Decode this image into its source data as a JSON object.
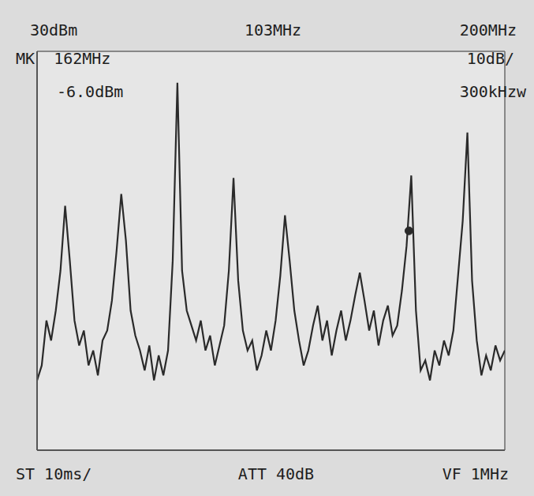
{
  "chart_data": {
    "type": "line",
    "annotations": [
      "30dBm",
      "103MHz",
      "200MHz",
      "MK  162MHz",
      "-6.0dBm",
      "10dB/",
      "300kHzw",
      "ST 10ms/",
      "ATT 40dB",
      "VF 1MHz"
    ],
    "x": [
      3,
      5,
      7,
      9,
      11,
      13,
      15,
      17,
      19,
      21,
      23,
      25,
      27,
      29,
      31,
      33,
      35,
      37,
      39,
      41,
      43,
      45,
      47,
      49,
      51,
      53,
      55,
      57,
      59,
      61,
      63,
      65,
      67,
      69,
      71,
      73,
      75,
      77,
      79,
      81,
      83,
      85,
      87,
      89,
      91,
      93,
      95,
      97,
      99,
      101,
      103,
      105,
      107,
      109,
      111,
      113,
      115,
      117,
      119,
      121,
      123,
      125,
      127,
      129,
      131,
      133,
      135,
      137,
      139,
      141,
      143,
      145,
      147,
      149,
      151,
      153,
      155,
      157,
      159,
      161,
      163,
      165,
      167,
      169,
      171,
      173,
      175,
      177,
      179,
      181,
      183,
      185,
      187,
      189,
      191,
      193,
      195,
      197,
      199,
      201,
      203
    ],
    "values": [
      -36,
      -33,
      -24,
      -28,
      -22,
      -14,
      -1,
      -12,
      -24,
      -29,
      -26,
      -33,
      -30,
      -35,
      -28,
      -26,
      -20,
      -10,
      1.4,
      -8,
      -22,
      -27,
      -30,
      -34,
      -29,
      -36,
      -31,
      -35,
      -30,
      -12,
      23.7,
      -14,
      -22,
      -25,
      -28,
      -24,
      -30,
      -27,
      -33,
      -29,
      -25,
      -14,
      4.6,
      -16,
      -26,
      -30,
      -28,
      -34,
      -31,
      -26,
      -30,
      -24,
      -15,
      -2.9,
      -12,
      -22,
      -28,
      -33,
      -30,
      -25,
      -21,
      -28,
      -24,
      -31,
      -26,
      -22,
      -28,
      -24,
      -19,
      -14.4,
      -20,
      -26,
      -22,
      -29,
      -24,
      -21,
      -27,
      -25,
      -18,
      -9,
      5.1,
      -22,
      -34,
      -32,
      -36,
      -30,
      -33,
      -28,
      -31,
      -26,
      -15,
      -4,
      13.7,
      -16,
      -28,
      -35,
      -31,
      -34,
      -29,
      -32,
      -30
    ],
    "marker_point": {
      "x": 162,
      "y": -6.0
    },
    "color": "#2a2a2a",
    "line_style": "solid",
    "xlim": [
      3,
      203
    ],
    "ylim": [
      -50,
      30
    ],
    "xticks": [
      3,
      23,
      43,
      63,
      83,
      103,
      123,
      143,
      163,
      183,
      203
    ],
    "yticks": [
      -50,
      -40,
      -30,
      -20,
      -10,
      0,
      10,
      20,
      30
    ],
    "grid": true,
    "tick_labels": false
  }
}
